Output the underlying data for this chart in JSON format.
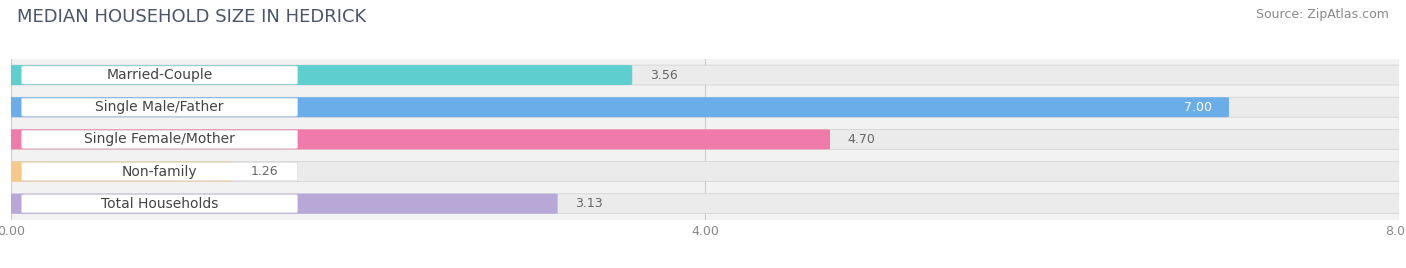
{
  "title": "MEDIAN HOUSEHOLD SIZE IN HEDRICK",
  "source": "Source: ZipAtlas.com",
  "categories": [
    "Married-Couple",
    "Single Male/Father",
    "Single Female/Mother",
    "Non-family",
    "Total Households"
  ],
  "values": [
    3.56,
    7.0,
    4.7,
    1.26,
    3.13
  ],
  "bar_colors": [
    "#5ecece",
    "#6aade8",
    "#f07aaa",
    "#f5c98a",
    "#b8a8d8"
  ],
  "label_text_colors": [
    "#555555",
    "#555555",
    "#555555",
    "#555555",
    "#555555"
  ],
  "value_label_white": [
    false,
    true,
    false,
    false,
    false
  ],
  "xlim": [
    0,
    8.0
  ],
  "xticks": [
    0.0,
    4.0,
    8.0
  ],
  "xtick_labels": [
    "0.00",
    "4.00",
    "8.00"
  ],
  "fig_background_color": "#ffffff",
  "plot_background_color": "#f2f2f2",
  "bar_bg_color": "#ebebeb",
  "title_fontsize": 13,
  "source_fontsize": 9,
  "label_fontsize": 10,
  "value_fontsize": 9,
  "bar_height": 0.58,
  "figsize": [
    14.06,
    2.68
  ],
  "dpi": 100
}
